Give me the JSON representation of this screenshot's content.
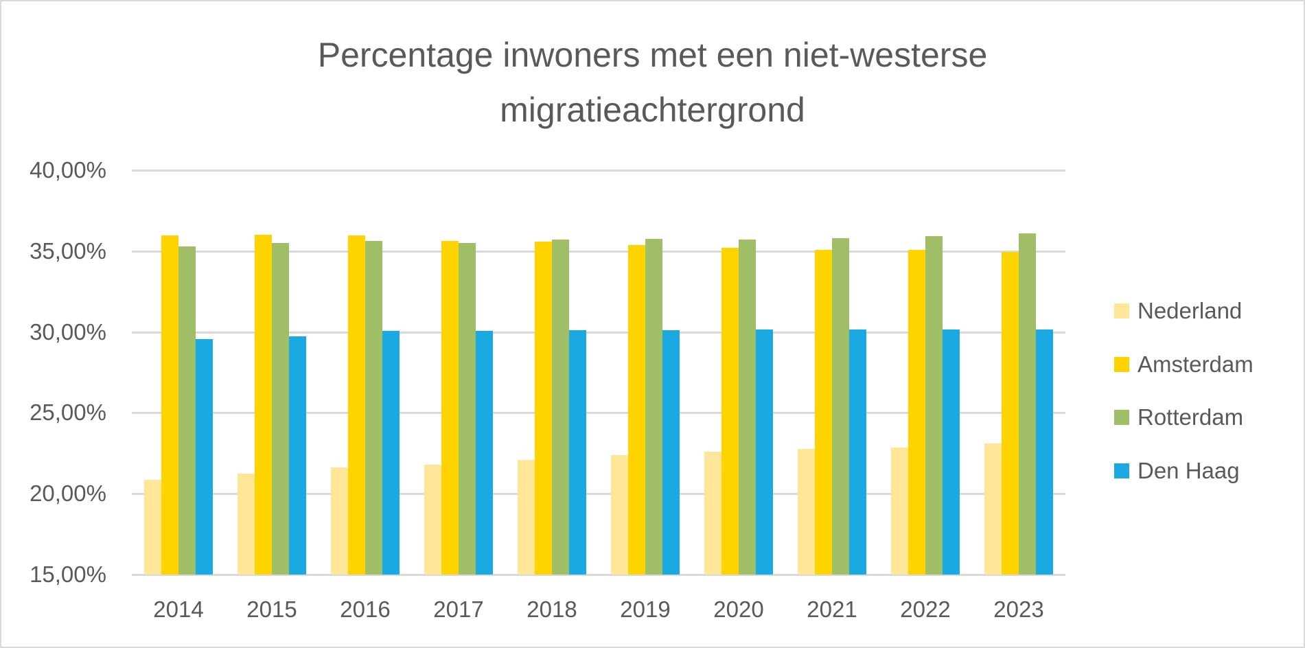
{
  "chart_data": {
    "type": "bar",
    "title": "Percentage inwoners met een niet-westerse migratieachtergrond",
    "title_lines": [
      "Percentage inwoners met een niet-westerse",
      "migratieachtergrond"
    ],
    "xlabel": "",
    "ylabel": "",
    "ylim": [
      15,
      40
    ],
    "y_ticks": [
      "40,00%",
      "35,00%",
      "30,00%",
      "25,00%",
      "20,00%",
      "15,00%"
    ],
    "y_tick_values": [
      40,
      35,
      30,
      25,
      20,
      15
    ],
    "grid": true,
    "legend_position": "right",
    "categories": [
      "2014",
      "2015",
      "2016",
      "2017",
      "2018",
      "2019",
      "2020",
      "2021",
      "2022",
      "2023"
    ],
    "series": [
      {
        "name": "Nederland",
        "color": "#FFE699",
        "values": [
          20.87,
          21.23,
          21.64,
          21.77,
          22.07,
          22.37,
          22.59,
          22.76,
          22.84,
          23.1
        ]
      },
      {
        "name": "Amsterdam",
        "color": "#FFD300",
        "values": [
          35.96,
          36.0,
          35.96,
          35.61,
          35.58,
          35.37,
          35.2,
          35.07,
          35.07,
          34.94
        ]
      },
      {
        "name": "Rotterdam",
        "color": "#9FBE66",
        "values": [
          35.27,
          35.5,
          35.61,
          35.5,
          35.71,
          35.75,
          35.71,
          35.79,
          35.91,
          36.08
        ]
      },
      {
        "name": "Den Haag",
        "color": "#1CA9E2",
        "values": [
          29.55,
          29.72,
          30.06,
          30.06,
          30.1,
          30.1,
          30.14,
          30.14,
          30.14,
          30.14
        ]
      }
    ]
  }
}
